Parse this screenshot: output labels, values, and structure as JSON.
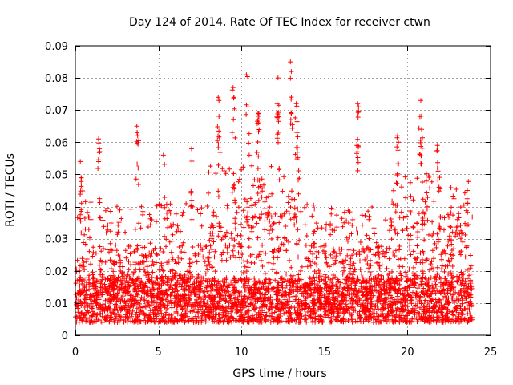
{
  "chart_data": {
    "type": "scatter",
    "title": "Day 124 of 2014, Rate Of TEC Index for receiver ctwn",
    "xlabel": "GPS time / hours",
    "ylabel": "ROTI / TECUs",
    "xlim": [
      0,
      25
    ],
    "ylim": [
      0,
      0.09
    ],
    "xticks": [
      0,
      5,
      10,
      15,
      20,
      25
    ],
    "xtick_labels": [
      "0",
      "5",
      "10",
      "15",
      "20",
      "25"
    ],
    "yticks": [
      0,
      0.01,
      0.02,
      0.03,
      0.04,
      0.05,
      0.06,
      0.07,
      0.08,
      0.09
    ],
    "ytick_labels": [
      "0",
      "0.01",
      "0.02",
      "0.03",
      "0.04",
      "0.05",
      "0.06",
      "0.07",
      "0.08",
      "0.09"
    ],
    "grid": true,
    "marker": "+",
    "color": "#ff0000",
    "series": [
      {
        "name": "ROTI",
        "x_range": [
          0,
          23.9
        ],
        "typical_range": [
          0.005,
          0.03
        ],
        "spikes": [
          {
            "x": 0.3,
            "y": 0.054
          },
          {
            "x": 0.35,
            "y": 0.049
          },
          {
            "x": 1.4,
            "y": 0.061
          },
          {
            "x": 1.45,
            "y": 0.058
          },
          {
            "x": 3.7,
            "y": 0.065
          },
          {
            "x": 3.75,
            "y": 0.062
          },
          {
            "x": 5.3,
            "y": 0.056
          },
          {
            "x": 7.0,
            "y": 0.058
          },
          {
            "x": 8.6,
            "y": 0.074
          },
          {
            "x": 8.65,
            "y": 0.073
          },
          {
            "x": 9.5,
            "y": 0.077
          },
          {
            "x": 9.55,
            "y": 0.074
          },
          {
            "x": 10.3,
            "y": 0.081
          },
          {
            "x": 10.4,
            "y": 0.071
          },
          {
            "x": 11.0,
            "y": 0.069
          },
          {
            "x": 11.0,
            "y": 0.067
          },
          {
            "x": 12.2,
            "y": 0.08
          },
          {
            "x": 12.15,
            "y": 0.072
          },
          {
            "x": 12.95,
            "y": 0.085
          },
          {
            "x": 13.0,
            "y": 0.082
          },
          {
            "x": 13.3,
            "y": 0.072
          },
          {
            "x": 13.35,
            "y": 0.063
          },
          {
            "x": 17.0,
            "y": 0.072
          },
          {
            "x": 17.05,
            "y": 0.071
          },
          {
            "x": 16.95,
            "y": 0.059
          },
          {
            "x": 19.4,
            "y": 0.062
          },
          {
            "x": 19.45,
            "y": 0.06
          },
          {
            "x": 20.8,
            "y": 0.073
          },
          {
            "x": 20.75,
            "y": 0.068
          },
          {
            "x": 20.85,
            "y": 0.064
          },
          {
            "x": 21.8,
            "y": 0.059
          },
          {
            "x": 23.6,
            "y": 0.045
          }
        ]
      }
    ]
  }
}
